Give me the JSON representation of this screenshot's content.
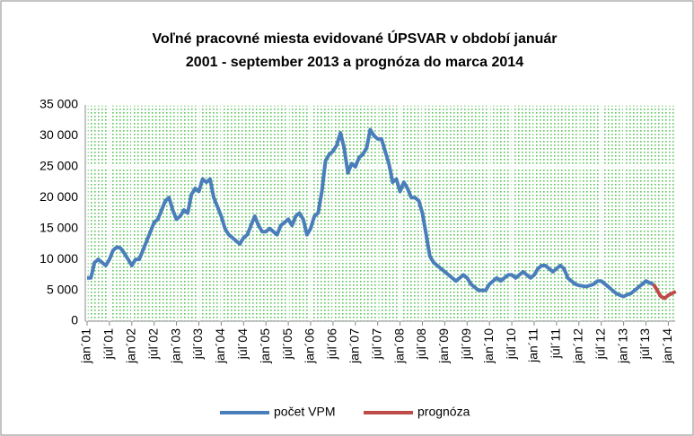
{
  "chart_data": {
    "type": "line",
    "title": [
      "Voľné pracovné miesta evidované ÚPSVAR v období január",
      "2001  - september 2013  a prognóza do marca 2014"
    ],
    "categories": [
      "jan´01",
      null,
      null,
      null,
      null,
      null,
      "júl´01",
      null,
      null,
      null,
      null,
      null,
      "jan´02",
      null,
      null,
      null,
      null,
      null,
      "júl´02",
      null,
      null,
      null,
      null,
      null,
      "jan´03",
      null,
      null,
      null,
      null,
      null,
      "júl´03",
      null,
      null,
      null,
      null,
      null,
      "jan´04",
      null,
      null,
      null,
      null,
      null,
      "júl´04",
      null,
      null,
      null,
      null,
      null,
      "jan´05",
      null,
      null,
      null,
      null,
      null,
      "júl´05",
      null,
      null,
      null,
      null,
      null,
      "jan´06",
      null,
      null,
      null,
      null,
      null,
      "júl´06",
      null,
      null,
      null,
      null,
      null,
      "jan´07",
      null,
      null,
      null,
      null,
      null,
      "júl´07",
      null,
      null,
      null,
      null,
      null,
      "jan´08",
      null,
      null,
      null,
      null,
      null,
      "júl´08",
      null,
      null,
      null,
      null,
      null,
      "jan´09",
      null,
      null,
      null,
      null,
      null,
      "júl´09",
      null,
      null,
      null,
      null,
      null,
      "jan´10",
      null,
      null,
      null,
      null,
      null,
      "júl´10",
      null,
      null,
      null,
      null,
      null,
      "jan´11",
      null,
      null,
      null,
      null,
      null,
      "júl´11",
      null,
      null,
      null,
      null,
      null,
      "jan´12",
      null,
      null,
      null,
      null,
      null,
      "júl´12",
      null,
      null,
      null,
      null,
      null,
      "jan´13",
      null,
      null,
      null,
      null,
      null,
      "júl´13",
      null,
      null,
      null,
      null,
      null,
      "jan´14",
      null,
      null
    ],
    "series": [
      {
        "name": "počet VPM",
        "color": "#4a7ebb",
        "values": [
          7000,
          7000,
          9500,
          10000,
          9500,
          9000,
          10000,
          11500,
          12000,
          11800,
          11000,
          10000,
          9000,
          10000,
          10000,
          11500,
          13000,
          14500,
          16000,
          16500,
          18000,
          19500,
          20000,
          18000,
          16500,
          17000,
          18000,
          17500,
          20500,
          21500,
          21000,
          23000,
          22500,
          23000,
          20000,
          18500,
          17000,
          15000,
          14000,
          13500,
          13000,
          12500,
          13500,
          14000,
          15500,
          17000,
          15500,
          14500,
          14500,
          15000,
          14500,
          14000,
          15500,
          16000,
          16500,
          15500,
          17000,
          17500,
          16500,
          14000,
          15000,
          17000,
          17500,
          21000,
          26000,
          27000,
          27500,
          28500,
          30500,
          28000,
          24000,
          25500,
          25000,
          26500,
          27000,
          28000,
          31000,
          30000,
          29500,
          29500,
          27500,
          25500,
          22500,
          23000,
          21000,
          22500,
          21500,
          20000,
          20000,
          19500,
          17500,
          14000,
          10500,
          9500,
          9000,
          8500,
          8000,
          7500,
          7000,
          6500,
          7000,
          7500,
          7000,
          6000,
          5500,
          5000,
          5000,
          5000,
          6000,
          6500,
          7000,
          6500,
          7000,
          7500,
          7500,
          7000,
          7500,
          8000,
          7500,
          7000,
          7500,
          8500,
          9000,
          9000,
          8500,
          8000,
          8500,
          9000,
          8500,
          7000,
          6500,
          6000,
          5800,
          5700,
          5600,
          5800,
          6000,
          6500,
          6500,
          6000,
          5500,
          5000,
          4500,
          4200,
          4000,
          4300,
          4500,
          5000,
          5500,
          6000,
          6500,
          6200,
          6000,
          null,
          null,
          null,
          null,
          null,
          null
        ]
      },
      {
        "name": "prognóza",
        "color": "#be4b48",
        "values": [
          null,
          null,
          null,
          null,
          null,
          null,
          null,
          null,
          null,
          null,
          null,
          null,
          null,
          null,
          null,
          null,
          null,
          null,
          null,
          null,
          null,
          null,
          null,
          null,
          null,
          null,
          null,
          null,
          null,
          null,
          null,
          null,
          null,
          null,
          null,
          null,
          null,
          null,
          null,
          null,
          null,
          null,
          null,
          null,
          null,
          null,
          null,
          null,
          null,
          null,
          null,
          null,
          null,
          null,
          null,
          null,
          null,
          null,
          null,
          null,
          null,
          null,
          null,
          null,
          null,
          null,
          null,
          null,
          null,
          null,
          null,
          null,
          null,
          null,
          null,
          null,
          null,
          null,
          null,
          null,
          null,
          null,
          null,
          null,
          null,
          null,
          null,
          null,
          null,
          null,
          null,
          null,
          null,
          null,
          null,
          null,
          null,
          null,
          null,
          null,
          null,
          null,
          null,
          null,
          null,
          null,
          null,
          null,
          null,
          null,
          null,
          null,
          null,
          null,
          null,
          null,
          null,
          null,
          null,
          null,
          null,
          null,
          null,
          null,
          null,
          null,
          null,
          null,
          null,
          null,
          null,
          null,
          null,
          null,
          null,
          null,
          null,
          null,
          null,
          null,
          null,
          null,
          null,
          null,
          null,
          null,
          null,
          null,
          null,
          null,
          null,
          null,
          6000,
          5000,
          4000,
          3700,
          4200,
          4500,
          4800
        ]
      }
    ],
    "ylim": [
      0,
      35000
    ],
    "yticks": [
      0,
      {
        "value": 5000,
        "label": "5 000"
      },
      {
        "value": 10000,
        "label": "10 000"
      },
      {
        "value": 15000,
        "label": "15 000"
      },
      {
        "value": 20000,
        "label": "20 000"
      },
      {
        "value": 25000,
        "label": "25 000"
      },
      {
        "value": 30000,
        "label": "30 000"
      },
      {
        "value": 35000,
        "label": "35 000"
      }
    ],
    "grid": true,
    "legend": "bottom"
  }
}
